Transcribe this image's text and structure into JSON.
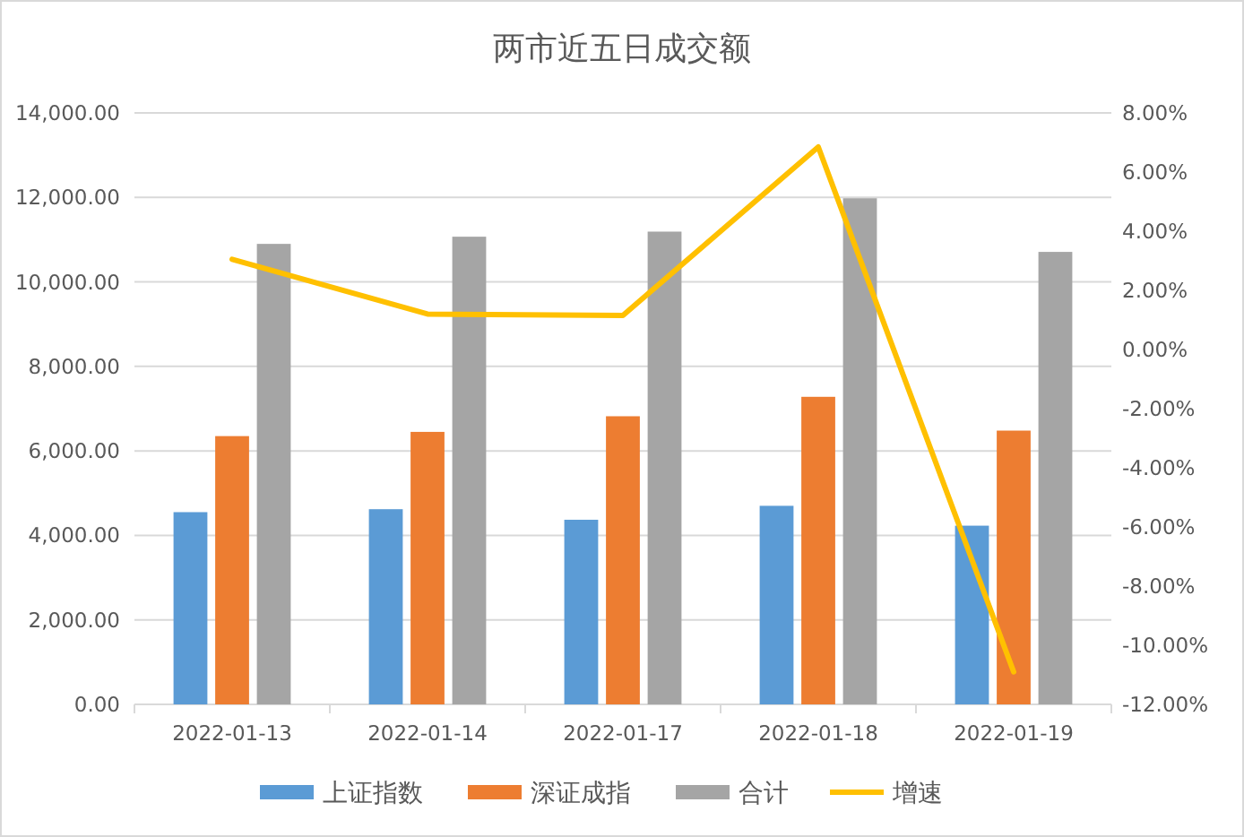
{
  "chart_data": {
    "type": "bar",
    "title": "两市近五日成交额",
    "categories": [
      "2022-01-13",
      "2022-01-14",
      "2022-01-17",
      "2022-01-18",
      "2022-01-19"
    ],
    "series": [
      {
        "name": "上证指数",
        "color": "#5b9bd5",
        "values": [
          4550,
          4620,
          4370,
          4700,
          4230
        ]
      },
      {
        "name": "深证成指",
        "color": "#ed7d31",
        "values": [
          6350,
          6450,
          6820,
          7280,
          6480
        ]
      },
      {
        "name": "合计",
        "color": "#a5a5a5",
        "values": [
          10900,
          11070,
          11190,
          11980,
          10710
        ]
      },
      {
        "name": "增速",
        "type": "line",
        "axis": "y2",
        "color": "#ffc000",
        "values": [
          3.05,
          1.2,
          1.15,
          6.85,
          -10.9
        ]
      }
    ],
    "ylim": [
      0,
      14000
    ],
    "yticks": [
      {
        "value": 0,
        "label": "0.00"
      },
      {
        "value": 2000,
        "label": "2,000.00"
      },
      {
        "value": 4000,
        "label": "4,000.00"
      },
      {
        "value": 6000,
        "label": "6,000.00"
      },
      {
        "value": 8000,
        "label": "8,000.00"
      },
      {
        "value": 10000,
        "label": "10,000.00"
      },
      {
        "value": 12000,
        "label": "12,000.00"
      },
      {
        "value": 14000,
        "label": "14,000.00"
      }
    ],
    "y2lim": [
      -12,
      8
    ],
    "y2ticks": [
      {
        "value": -12,
        "label": "-12.00%"
      },
      {
        "value": -10,
        "label": "-10.00%"
      },
      {
        "value": -8,
        "label": "-8.00%"
      },
      {
        "value": -6,
        "label": "-6.00%"
      },
      {
        "value": -4,
        "label": "-4.00%"
      },
      {
        "value": -2,
        "label": "-2.00%"
      },
      {
        "value": 0,
        "label": "0.00%"
      },
      {
        "value": 2,
        "label": "2.00%"
      },
      {
        "value": 4,
        "label": "4.00%"
      },
      {
        "value": 6,
        "label": "6.00%"
      },
      {
        "value": 8,
        "label": "8.00%"
      }
    ],
    "grid": "y",
    "legend": "bottom",
    "marker": "none",
    "line_style": "solid"
  }
}
